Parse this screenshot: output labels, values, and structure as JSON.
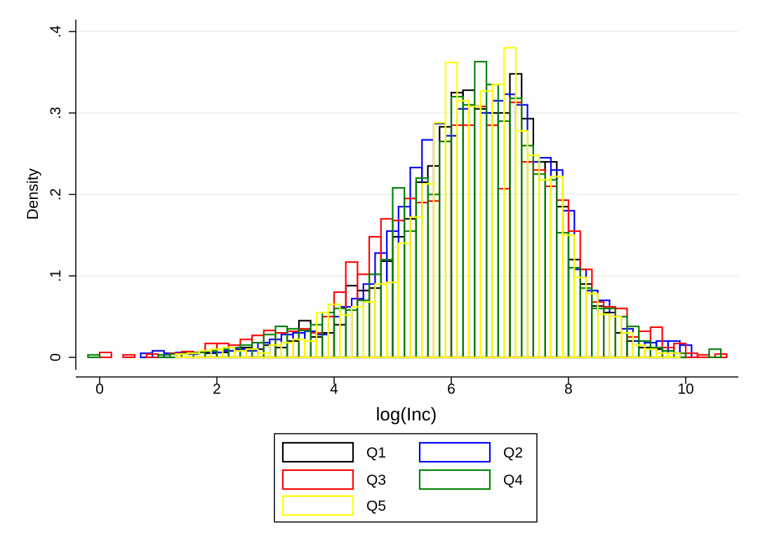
{
  "chart_data": {
    "type": "bar",
    "subtype": "overlaid-histograms",
    "xlabel": "log(Inc)",
    "ylabel": "Density",
    "xlim": [
      -0.45,
      10.8
    ],
    "ylim": [
      0,
      0.42
    ],
    "xticks": [
      0,
      2,
      4,
      6,
      8,
      10
    ],
    "xtick_labels": [
      "0",
      "2",
      "4",
      "6",
      "8",
      "10"
    ],
    "yticks": [
      0,
      0.1,
      0.2,
      0.3,
      0.4
    ],
    "ytick_labels": [
      "0",
      ".1",
      ".2",
      ".3",
      ".4"
    ],
    "grid": true,
    "legend_position": "bottom",
    "series": [
      {
        "name": "Q1",
        "color": "#000000",
        "bin_width": 0.2,
        "bins": [
          [
            1.8,
            0.005
          ],
          [
            2.0,
            0.006
          ],
          [
            2.2,
            0.008
          ],
          [
            2.4,
            0.012
          ],
          [
            2.6,
            0.01
          ],
          [
            2.8,
            0.015
          ],
          [
            3.0,
            0.012
          ],
          [
            3.2,
            0.02
          ],
          [
            3.4,
            0.045
          ],
          [
            3.6,
            0.025
          ],
          [
            3.8,
            0.03
          ],
          [
            4.0,
            0.04
          ],
          [
            4.2,
            0.088
          ],
          [
            4.4,
            0.082
          ],
          [
            4.6,
            0.085
          ],
          [
            4.8,
            0.118
          ],
          [
            5.0,
            0.148
          ],
          [
            5.2,
            0.17
          ],
          [
            5.4,
            0.215
          ],
          [
            5.6,
            0.235
          ],
          [
            5.8,
            0.283
          ],
          [
            6.0,
            0.325
          ],
          [
            6.2,
            0.328
          ],
          [
            6.4,
            0.305
          ],
          [
            6.6,
            0.3
          ],
          [
            6.8,
            0.3
          ],
          [
            7.0,
            0.348
          ],
          [
            7.2,
            0.293
          ],
          [
            7.4,
            0.24
          ],
          [
            7.6,
            0.24
          ],
          [
            7.8,
            0.185
          ],
          [
            8.0,
            0.12
          ],
          [
            8.2,
            0.09
          ],
          [
            8.4,
            0.063
          ],
          [
            8.6,
            0.055
          ],
          [
            8.8,
            0.03
          ],
          [
            9.0,
            0.02
          ],
          [
            9.2,
            0.012
          ],
          [
            9.4,
            0.01
          ],
          [
            9.6,
            0.008
          ]
        ]
      },
      {
        "name": "Q2",
        "color": "#0000ff",
        "bin_width": 0.2,
        "bins": [
          [
            0.7,
            0.005
          ],
          [
            0.9,
            0.008
          ],
          [
            1.1,
            0.005
          ],
          [
            1.3,
            0.006
          ],
          [
            1.5,
            0.004
          ],
          [
            1.7,
            0.007
          ],
          [
            1.9,
            0.006
          ],
          [
            2.1,
            0.008
          ],
          [
            2.3,
            0.01
          ],
          [
            2.5,
            0.008
          ],
          [
            2.7,
            0.018
          ],
          [
            2.9,
            0.022
          ],
          [
            3.1,
            0.028
          ],
          [
            3.3,
            0.03
          ],
          [
            3.5,
            0.032
          ],
          [
            3.7,
            0.028
          ],
          [
            3.9,
            0.05
          ],
          [
            4.1,
            0.062
          ],
          [
            4.3,
            0.072
          ],
          [
            4.5,
            0.09
          ],
          [
            4.7,
            0.128
          ],
          [
            4.9,
            0.155
          ],
          [
            5.1,
            0.185
          ],
          [
            5.3,
            0.233
          ],
          [
            5.5,
            0.267
          ],
          [
            5.7,
            0.287
          ],
          [
            5.9,
            0.272
          ],
          [
            6.1,
            0.305
          ],
          [
            6.3,
            0.308
          ],
          [
            6.5,
            0.3
          ],
          [
            6.7,
            0.315
          ],
          [
            6.9,
            0.323
          ],
          [
            7.1,
            0.31
          ],
          [
            7.3,
            0.24
          ],
          [
            7.5,
            0.245
          ],
          [
            7.7,
            0.23
          ],
          [
            7.9,
            0.18
          ],
          [
            8.1,
            0.108
          ],
          [
            8.3,
            0.082
          ],
          [
            8.5,
            0.07
          ],
          [
            8.7,
            0.05
          ],
          [
            8.9,
            0.035
          ],
          [
            9.1,
            0.02
          ],
          [
            9.3,
            0.018
          ],
          [
            9.5,
            0.02
          ],
          [
            9.7,
            0.02
          ],
          [
            9.9,
            0.015
          ]
        ]
      },
      {
        "name": "Q3",
        "color": "#ff0000",
        "bin_width": 0.2,
        "bins": [
          [
            0.0,
            0.006
          ],
          [
            0.4,
            0.003
          ],
          [
            0.8,
            0.004
          ],
          [
            1.2,
            0.005
          ],
          [
            1.4,
            0.007
          ],
          [
            1.6,
            0.006
          ],
          [
            1.8,
            0.017
          ],
          [
            2.0,
            0.017
          ],
          [
            2.2,
            0.015
          ],
          [
            2.4,
            0.022
          ],
          [
            2.6,
            0.027
          ],
          [
            2.8,
            0.033
          ],
          [
            3.0,
            0.03
          ],
          [
            3.2,
            0.032
          ],
          [
            3.4,
            0.035
          ],
          [
            3.6,
            0.03
          ],
          [
            3.8,
            0.05
          ],
          [
            4.0,
            0.08
          ],
          [
            4.2,
            0.117
          ],
          [
            4.4,
            0.102
          ],
          [
            4.6,
            0.148
          ],
          [
            4.8,
            0.17
          ],
          [
            5.0,
            0.168
          ],
          [
            5.2,
            0.195
          ],
          [
            5.4,
            0.19
          ],
          [
            5.6,
            0.192
          ],
          [
            5.8,
            0.265
          ],
          [
            6.0,
            0.285
          ],
          [
            6.2,
            0.285
          ],
          [
            6.4,
            0.308
          ],
          [
            6.6,
            0.285
          ],
          [
            6.8,
            0.207
          ],
          [
            7.0,
            0.313
          ],
          [
            7.2,
            0.24
          ],
          [
            7.4,
            0.23
          ],
          [
            7.6,
            0.21
          ],
          [
            7.8,
            0.193
          ],
          [
            8.0,
            0.155
          ],
          [
            8.2,
            0.108
          ],
          [
            8.4,
            0.068
          ],
          [
            8.6,
            0.062
          ],
          [
            8.8,
            0.06
          ],
          [
            9.0,
            0.025
          ],
          [
            9.2,
            0.032
          ],
          [
            9.4,
            0.037
          ],
          [
            9.6,
            0.012
          ],
          [
            9.8,
            0.017
          ],
          [
            10.0,
            0.005
          ],
          [
            10.2,
            0.003
          ],
          [
            10.5,
            0.004
          ]
        ]
      },
      {
        "name": "Q4",
        "color": "#008000",
        "bin_width": 0.2,
        "bins": [
          [
            -0.2,
            0.003
          ],
          [
            1.0,
            0.003
          ],
          [
            1.2,
            0.004
          ],
          [
            1.4,
            0.005
          ],
          [
            1.6,
            0.006
          ],
          [
            1.8,
            0.008
          ],
          [
            2.0,
            0.01
          ],
          [
            2.2,
            0.012
          ],
          [
            2.4,
            0.015
          ],
          [
            2.6,
            0.018
          ],
          [
            2.8,
            0.028
          ],
          [
            3.0,
            0.038
          ],
          [
            3.2,
            0.035
          ],
          [
            3.4,
            0.033
          ],
          [
            3.6,
            0.04
          ],
          [
            3.8,
            0.055
          ],
          [
            4.0,
            0.06
          ],
          [
            4.2,
            0.058
          ],
          [
            4.4,
            0.07
          ],
          [
            4.6,
            0.102
          ],
          [
            4.8,
            0.12
          ],
          [
            5.0,
            0.208
          ],
          [
            5.2,
            0.155
          ],
          [
            5.4,
            0.22
          ],
          [
            5.6,
            0.2
          ],
          [
            5.8,
            0.265
          ],
          [
            6.0,
            0.32
          ],
          [
            6.2,
            0.31
          ],
          [
            6.4,
            0.363
          ],
          [
            6.6,
            0.335
          ],
          [
            6.8,
            0.29
          ],
          [
            7.0,
            0.318
          ],
          [
            7.2,
            0.26
          ],
          [
            7.4,
            0.225
          ],
          [
            7.6,
            0.218
          ],
          [
            7.8,
            0.153
          ],
          [
            8.0,
            0.11
          ],
          [
            8.2,
            0.085
          ],
          [
            8.4,
            0.06
          ],
          [
            8.6,
            0.06
          ],
          [
            8.8,
            0.05
          ],
          [
            9.0,
            0.038
          ],
          [
            9.2,
            0.02
          ],
          [
            9.4,
            0.012
          ],
          [
            9.6,
            0.008
          ],
          [
            9.8,
            0.005
          ],
          [
            10.4,
            0.01
          ]
        ]
      },
      {
        "name": "Q5",
        "color": "#ffff00",
        "bin_width": 0.2,
        "bins": [
          [
            1.3,
            0.004
          ],
          [
            1.5,
            0.005
          ],
          [
            1.7,
            0.008
          ],
          [
            1.9,
            0.01
          ],
          [
            2.1,
            0.012
          ],
          [
            2.3,
            0.008
          ],
          [
            2.5,
            0.01
          ],
          [
            2.7,
            0.005
          ],
          [
            2.9,
            0.015
          ],
          [
            3.1,
            0.018
          ],
          [
            3.3,
            0.022
          ],
          [
            3.5,
            0.02
          ],
          [
            3.7,
            0.055
          ],
          [
            3.9,
            0.065
          ],
          [
            4.1,
            0.052
          ],
          [
            4.3,
            0.062
          ],
          [
            4.5,
            0.068
          ],
          [
            4.7,
            0.09
          ],
          [
            4.9,
            0.092
          ],
          [
            5.1,
            0.14
          ],
          [
            5.3,
            0.172
          ],
          [
            5.5,
            0.213
          ],
          [
            5.7,
            0.288
          ],
          [
            5.9,
            0.362
          ],
          [
            6.1,
            0.315
          ],
          [
            6.3,
            0.308
          ],
          [
            6.5,
            0.327
          ],
          [
            6.7,
            0.335
          ],
          [
            6.9,
            0.38
          ],
          [
            7.1,
            0.278
          ],
          [
            7.3,
            0.248
          ],
          [
            7.5,
            0.218
          ],
          [
            7.7,
            0.222
          ],
          [
            7.9,
            0.15
          ],
          [
            8.1,
            0.098
          ],
          [
            8.3,
            0.078
          ],
          [
            8.5,
            0.053
          ],
          [
            8.7,
            0.05
          ],
          [
            8.9,
            0.03
          ],
          [
            9.1,
            0.015
          ],
          [
            9.3,
            0.01
          ],
          [
            9.5,
            0.005
          ],
          [
            9.7,
            0.005
          ]
        ]
      }
    ],
    "legend": {
      "entries": [
        "Q1",
        "Q2",
        "Q3",
        "Q4",
        "Q5"
      ]
    }
  }
}
